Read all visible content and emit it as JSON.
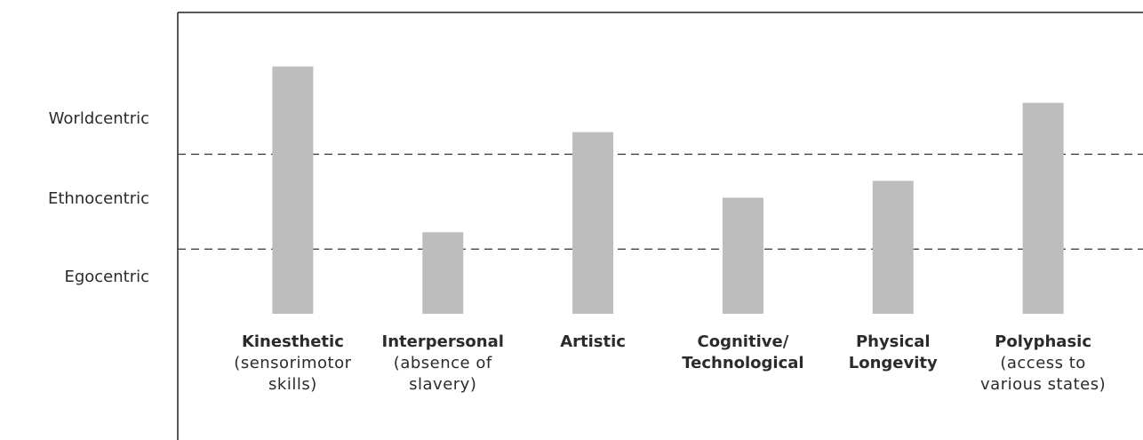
{
  "chart_data": {
    "type": "bar",
    "categories": [
      "Kinesthetic",
      "Interpersonal",
      "Artistic",
      "Cognitive/\nTechnological",
      "Physical\nLongevity",
      "Polyphasic"
    ],
    "category_notes": [
      "(sensorimotor\nskills)",
      "(absence of\nslavery)",
      null,
      null,
      null,
      "(access to\nvarious states)"
    ],
    "values": [
      279,
      92,
      205,
      131,
      150,
      238
    ],
    "color": "#bdbdbd",
    "ylim": [
      0,
      340
    ],
    "yticks": [
      {
        "value": 41,
        "label": "Egocentric"
      },
      {
        "value": 129,
        "label": "Ethnocentric"
      },
      {
        "value": 220,
        "label": "Worldcentric"
      }
    ],
    "level_boundaries": [
      73,
      180
    ]
  }
}
